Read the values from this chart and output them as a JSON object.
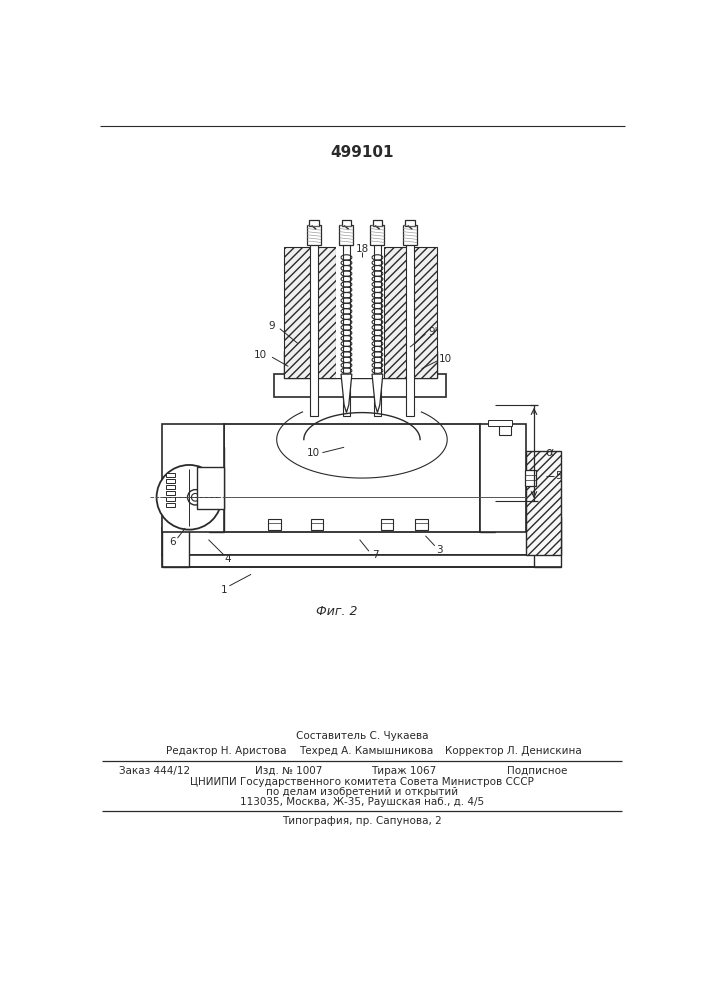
{
  "patent_number": "499101",
  "fig_label": "Фиг. 2",
  "bg_color": "#ffffff",
  "line_color": "#2a2a2a",
  "footer": {
    "sestavitel": "Составитель С. Чукаева",
    "redaktor": "Редактор Н. Аристова",
    "tekhred": "Техред А. Камышникова",
    "korrektor": "Корректор Л. Денискина",
    "zakaz": "Заказ 444/12",
    "izd": "Изд. № 1007",
    "tirazh": "Тираж 1067",
    "podpisnoe": "Подписное",
    "tsniip": "ЦНИИПИ Государственного комитета Совета Министров СССР",
    "po_delam": "по делам изобретений и открытий",
    "address": "113035, Москва, Ж-35, Раушская наб., д. 4/5",
    "tipografia": "Типография, пр. Сапунова, 2"
  }
}
